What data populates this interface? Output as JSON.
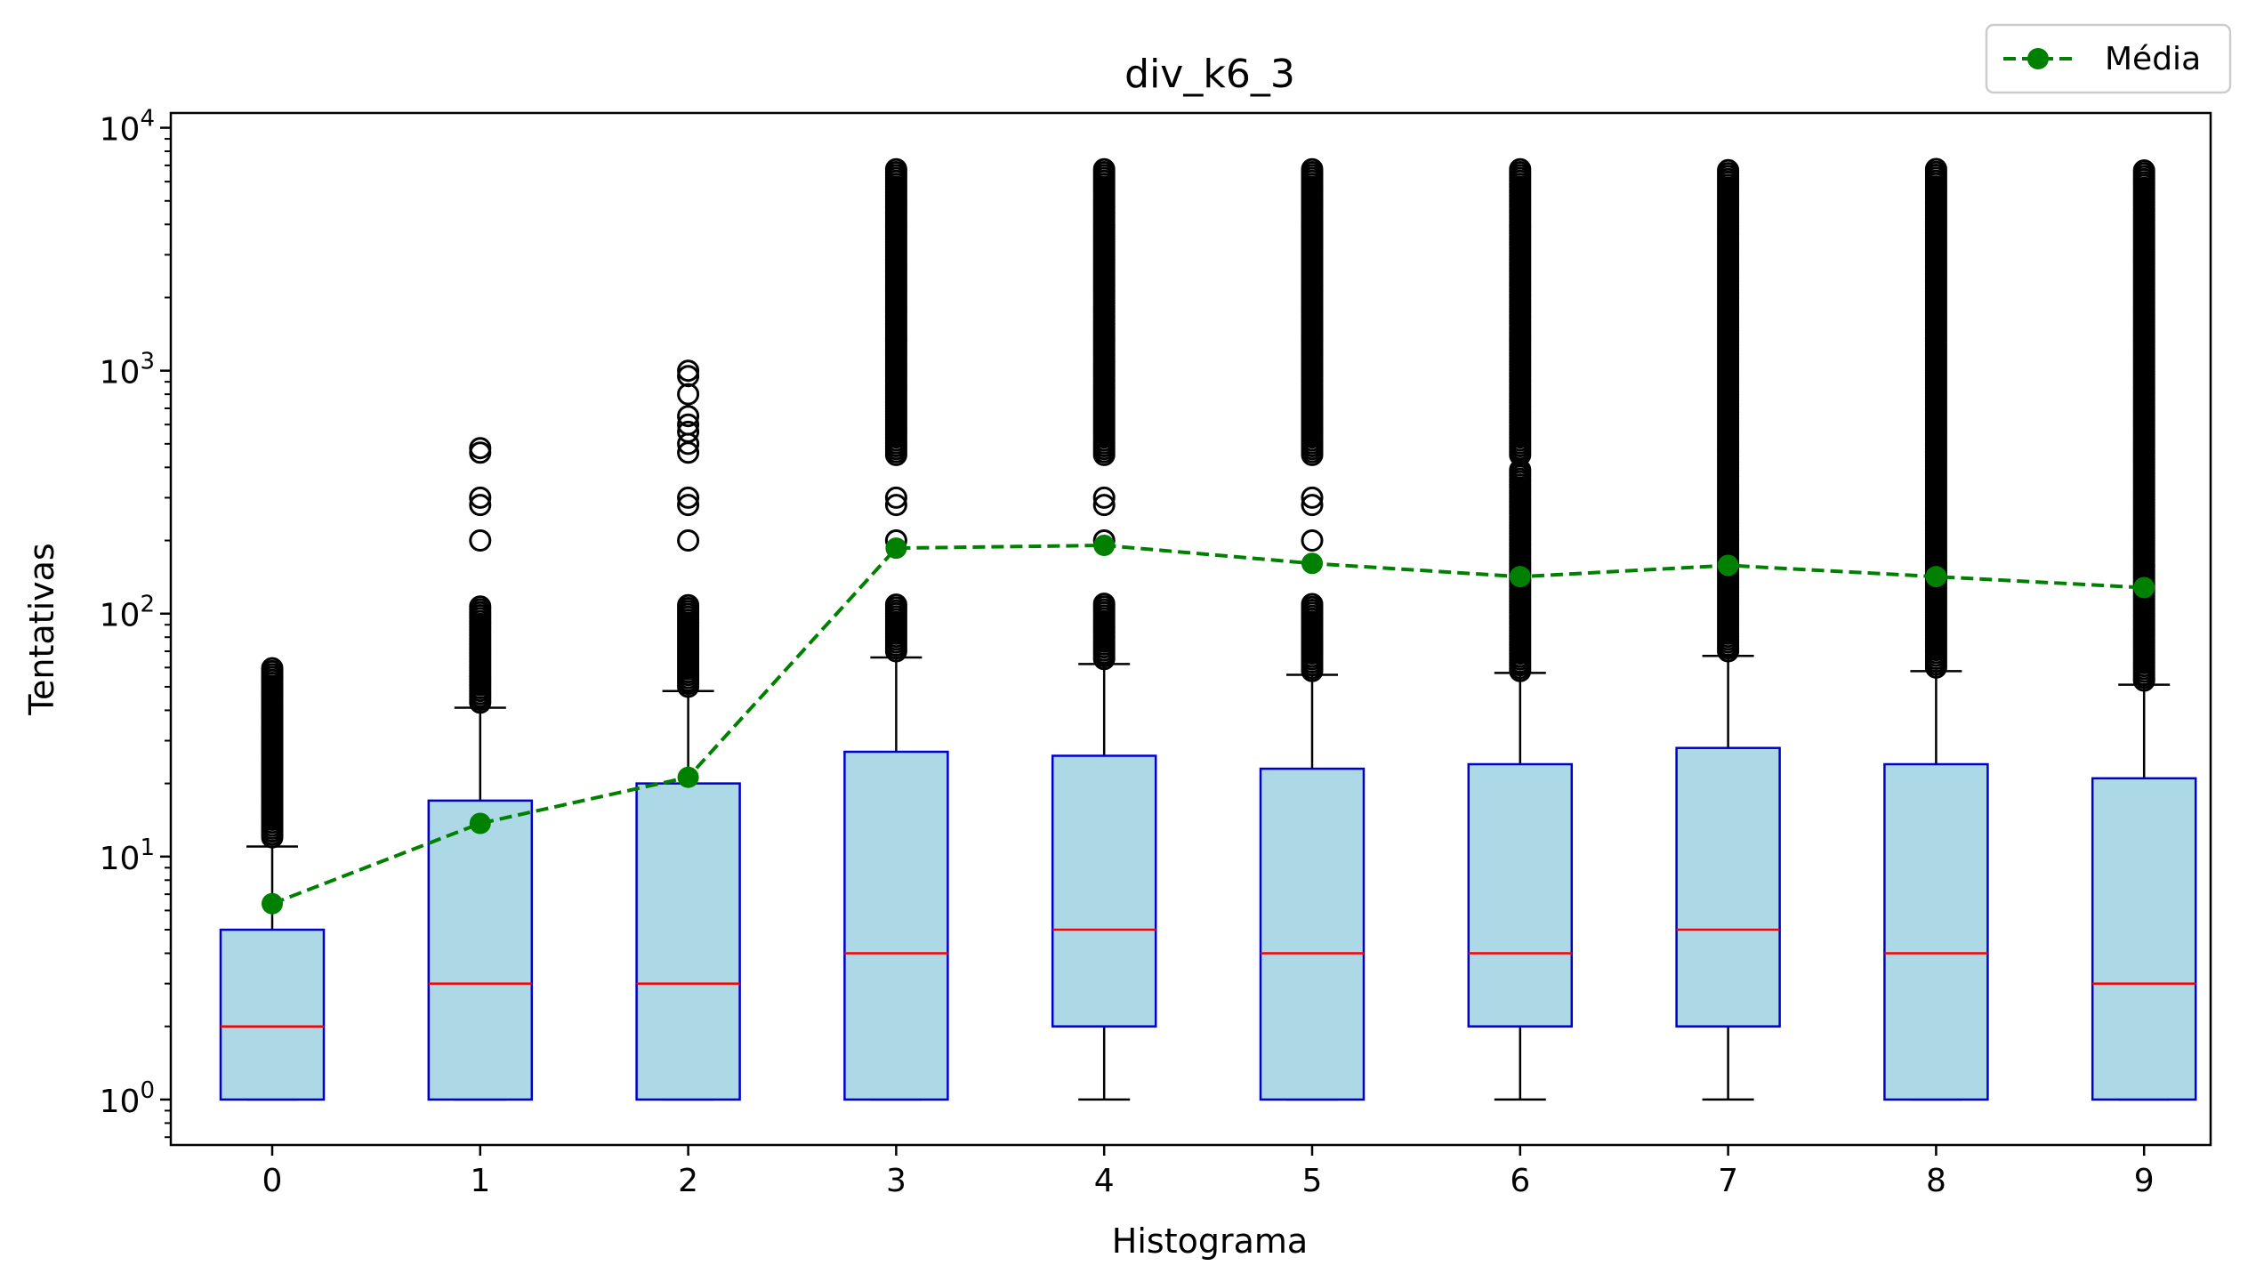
{
  "chart_data": {
    "type": "box",
    "title": "div_k6_3",
    "xlabel": "Histograma",
    "ylabel": "Tentativas",
    "yscale": "log",
    "ylim": [
      0.65,
      11500
    ],
    "y_ticks": [
      {
        "base": "10",
        "exp": "0",
        "value": 1
      },
      {
        "base": "10",
        "exp": "1",
        "value": 10
      },
      {
        "base": "10",
        "exp": "2",
        "value": 100
      },
      {
        "base": "10",
        "exp": "3",
        "value": 1000
      },
      {
        "base": "10",
        "exp": "4",
        "value": 10000
      }
    ],
    "categories": [
      "0",
      "1",
      "2",
      "3",
      "4",
      "5",
      "6",
      "7",
      "8",
      "9"
    ],
    "boxes": [
      {
        "q1": 1,
        "median": 2,
        "q3": 5,
        "whisker_low": 1,
        "whisker_high": 11,
        "outlier_min": 12,
        "outlier_max": 60
      },
      {
        "q1": 1,
        "median": 3,
        "q3": 17,
        "whisker_low": 1,
        "whisker_high": 41,
        "outlier_min": 43,
        "outlier_max": 110,
        "sparse_outliers": [
          200,
          280,
          300,
          460,
          480
        ]
      },
      {
        "q1": 1,
        "median": 3,
        "q3": 20,
        "whisker_low": 1,
        "whisker_high": 48,
        "outlier_min": 50,
        "outlier_max": 110,
        "sparse_outliers": [
          200,
          280,
          300,
          460,
          500,
          560,
          600,
          650,
          800,
          950,
          1000
        ]
      },
      {
        "q1": 1,
        "median": 4,
        "q3": 27,
        "whisker_low": 1,
        "whisker_high": 66,
        "outlier_min": 70,
        "outlier_max": 110,
        "sparse_outliers": [
          200,
          280,
          300
        ],
        "upper_outlier_min": 450,
        "upper_outlier_max": 6800
      },
      {
        "q1": 2,
        "median": 5,
        "q3": 26,
        "whisker_low": 1,
        "whisker_high": 62,
        "outlier_min": 65,
        "outlier_max": 110,
        "sparse_outliers": [
          200,
          280,
          300
        ],
        "upper_outlier_min": 450,
        "upper_outlier_max": 6800
      },
      {
        "q1": 1,
        "median": 4,
        "q3": 23,
        "whisker_low": 1,
        "whisker_high": 56,
        "outlier_min": 58,
        "outlier_max": 110,
        "sparse_outliers": [
          200,
          280,
          300
        ],
        "upper_outlier_min": 450,
        "upper_outlier_max": 6800
      },
      {
        "q1": 2,
        "median": 4,
        "q3": 24,
        "whisker_low": 1,
        "whisker_high": 57,
        "outlier_min": 58,
        "outlier_max": 400,
        "upper_outlier_min": 450,
        "upper_outlier_max": 6800
      },
      {
        "q1": 2,
        "median": 5,
        "q3": 28,
        "whisker_low": 1,
        "whisker_high": 67,
        "outlier_min": 70,
        "outlier_max": 6800
      },
      {
        "q1": 1,
        "median": 4,
        "q3": 24,
        "whisker_low": 1,
        "whisker_high": 58,
        "outlier_min": 60,
        "outlier_max": 6800
      },
      {
        "q1": 1,
        "median": 3,
        "q3": 21,
        "whisker_low": 1,
        "whisker_high": 51,
        "outlier_min": 53,
        "outlier_max": 6800
      }
    ],
    "series": [
      {
        "name": "Média",
        "values": [
          6.4,
          13.7,
          21.2,
          186,
          191,
          161,
          142,
          158,
          142,
          128
        ]
      }
    ],
    "legend": {
      "position": "top-right"
    },
    "colors": {
      "box_fill": "#add8e6",
      "box_edge": "#0000cd",
      "median": "#ff0000",
      "whisker": "#000000",
      "mean": "#008000"
    }
  }
}
